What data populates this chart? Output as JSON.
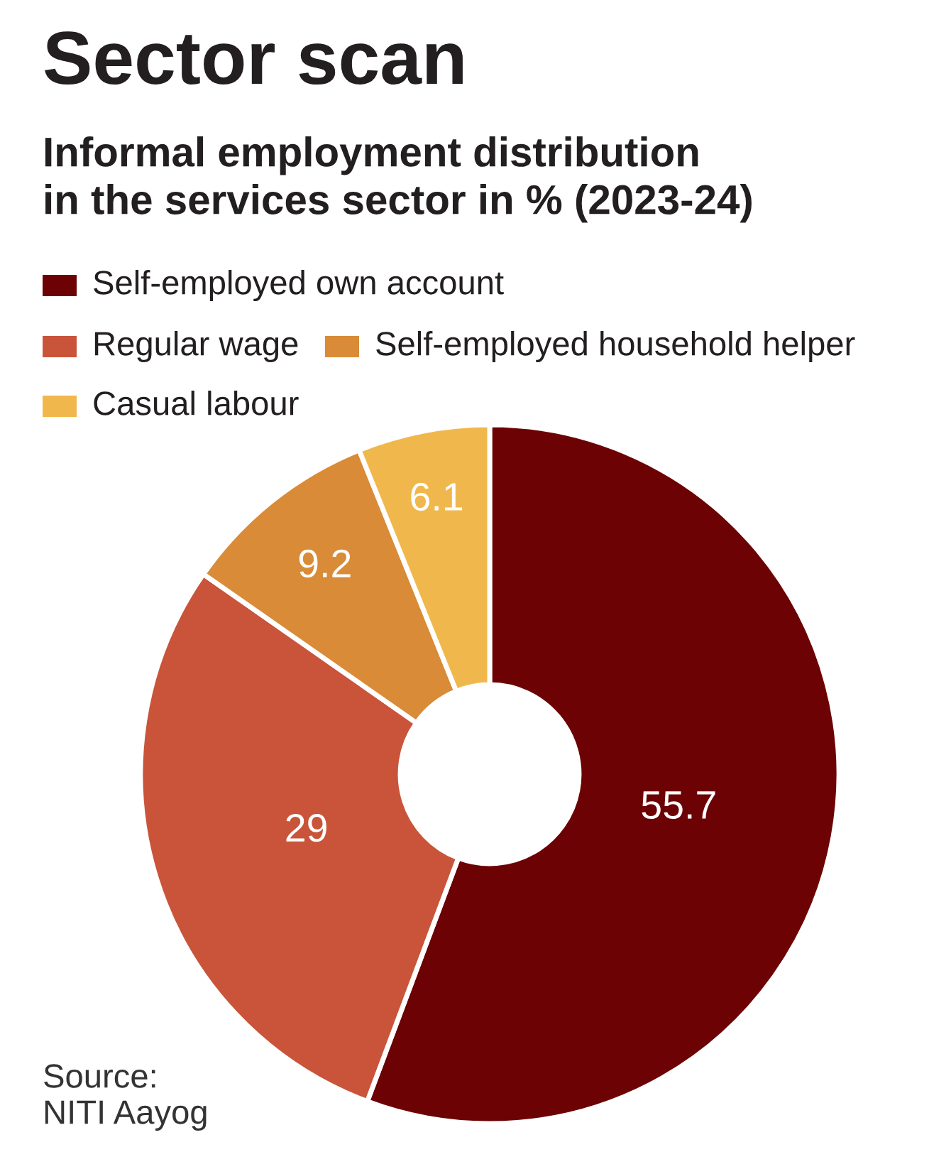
{
  "chart_data": {
    "type": "donut",
    "title": "Sector scan",
    "subtitle": "Informal employment distribution\nin the services sector in % (2023-24)",
    "categories": [
      "Self-employed own account",
      "Regular wage",
      "Self-employed household helper",
      "Casual labour"
    ],
    "values": [
      55.7,
      29,
      9.2,
      6.1
    ],
    "colors": [
      "#6c0204",
      "#c9543a",
      "#d98b37",
      "#f0b84c"
    ],
    "data_labels": true,
    "legend": "top",
    "annotations": [
      "Source:\nNITI Aayog"
    ]
  }
}
